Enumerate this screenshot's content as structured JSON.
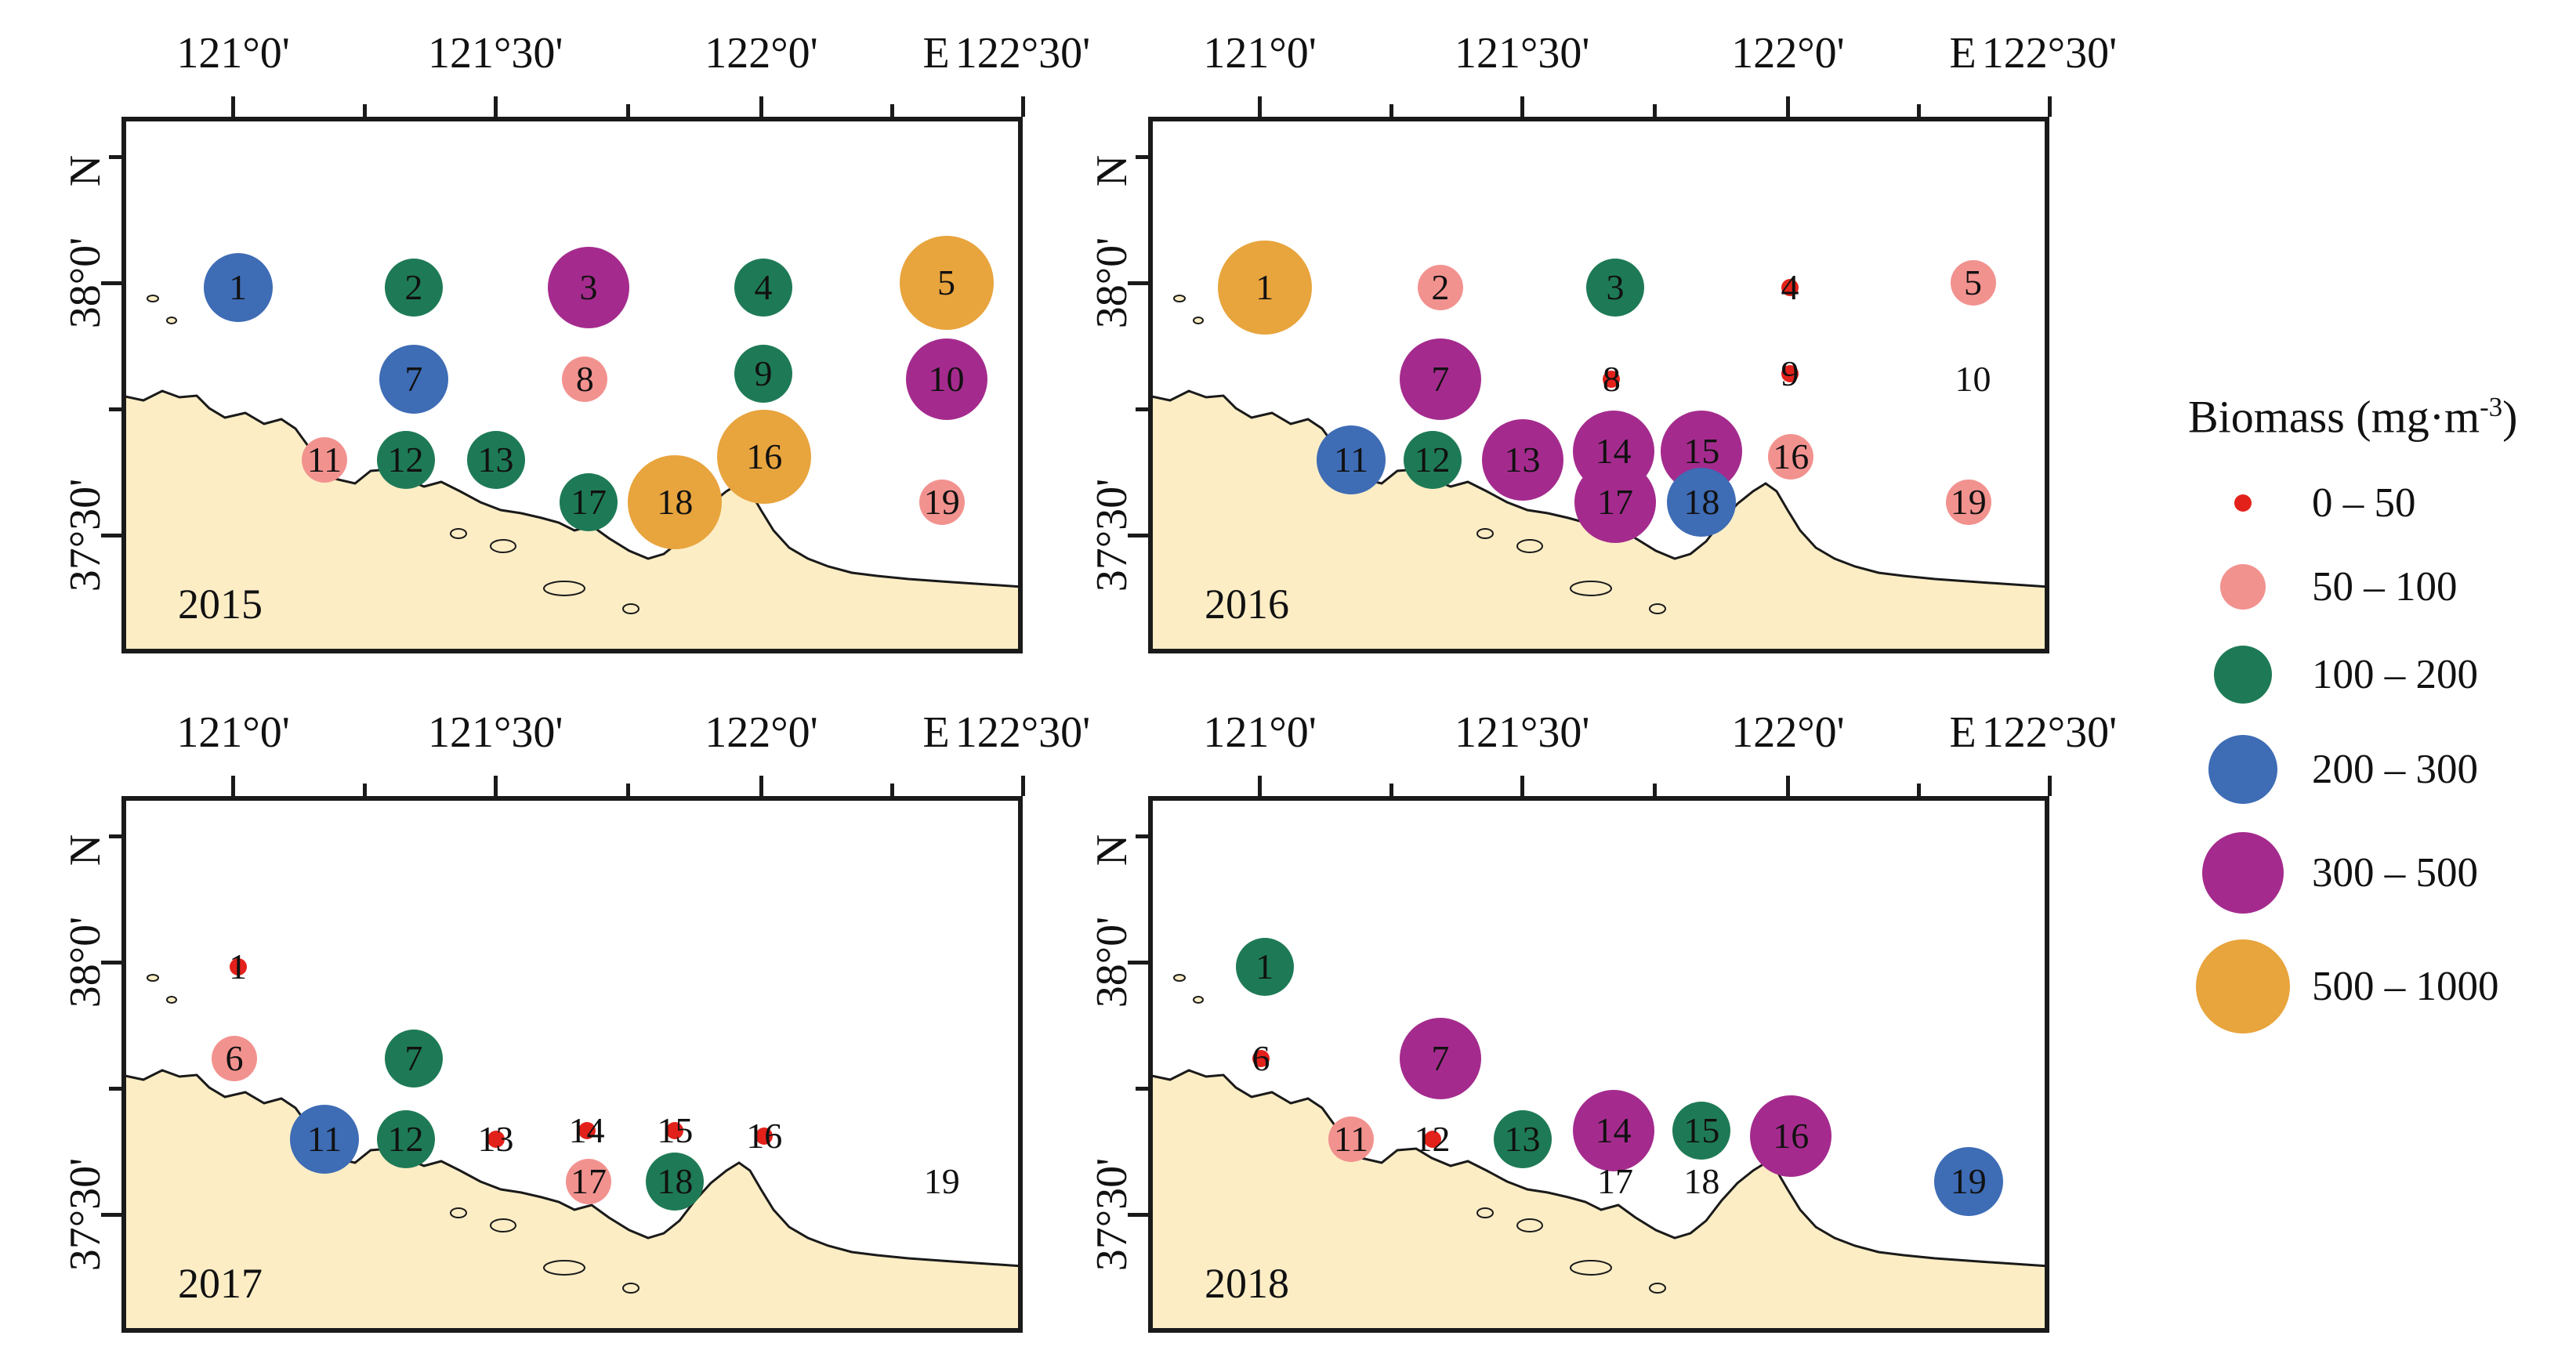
{
  "figure": {
    "legend": {
      "title_main": "Biomass (mg·m",
      "title_sup": "-3",
      "title_close": ")"
    },
    "colors": {
      "land": "#fcedc5",
      "sea": "#ffffff",
      "axis": "#1a1a1a"
    },
    "categories": [
      {
        "range": "0 – 50",
        "color": "#e3211b",
        "radius": 11
      },
      {
        "range": "50 – 100",
        "color": "#f2928f",
        "radius": 29
      },
      {
        "range": "100 – 200",
        "color": "#1e7a56",
        "radius": 37
      },
      {
        "range": "200 – 300",
        "color": "#3e6cb5",
        "radius": 44
      },
      {
        "range": "300 – 500",
        "color": "#a42b8d",
        "radius": 52
      },
      {
        "range": "500 – 1000",
        "color": "#e8a43d",
        "radius": 60
      }
    ],
    "station_positions": {
      "1": [
        0.124,
        0.31
      ],
      "2": [
        0.319,
        0.31
      ],
      "3": [
        0.513,
        0.31
      ],
      "4": [
        0.707,
        0.31
      ],
      "5": [
        0.91,
        0.3
      ],
      "6": [
        0.12,
        0.48
      ],
      "7": [
        0.319,
        0.48
      ],
      "8": [
        0.509,
        0.48
      ],
      "9": [
        0.707,
        0.47
      ],
      "10": [
        0.91,
        0.48
      ],
      "11": [
        0.22,
        0.63
      ],
      "12": [
        0.31,
        0.63
      ],
      "13": [
        0.41,
        0.63
      ],
      "14": [
        0.511,
        0.615
      ],
      "15": [
        0.609,
        0.615
      ],
      "16": [
        0.708,
        0.625
      ],
      "17": [
        0.513,
        0.71
      ],
      "18": [
        0.609,
        0.71
      ],
      "19": [
        0.905,
        0.71
      ]
    }
  },
  "chart_data": [
    {
      "type": "bubble-map",
      "year": "2015",
      "x_axis_prefix": "E",
      "y_axis_prefix": "N",
      "x_tick_labels": [
        "121°0'",
        "121°30'",
        "122°0'",
        "122°30'"
      ],
      "y_tick_labels": [
        "38°0'",
        "37°30'"
      ],
      "stations": [
        {
          "id": "1",
          "biomass": "200 – 300"
        },
        {
          "id": "2",
          "biomass": "100 – 200"
        },
        {
          "id": "3",
          "biomass": "300 – 500"
        },
        {
          "id": "4",
          "biomass": "100 – 200"
        },
        {
          "id": "5",
          "biomass": "500 – 1000"
        },
        {
          "id": "7",
          "biomass": "200 – 300"
        },
        {
          "id": "8",
          "biomass": "50 – 100"
        },
        {
          "id": "9",
          "biomass": "100 – 200"
        },
        {
          "id": "10",
          "biomass": "300 – 500"
        },
        {
          "id": "11",
          "biomass": "50 – 100"
        },
        {
          "id": "12",
          "biomass": "100 – 200"
        },
        {
          "id": "13",
          "biomass": "100 – 200"
        },
        {
          "id": "16",
          "biomass": "500 – 1000"
        },
        {
          "id": "17",
          "biomass": "100 – 200"
        },
        {
          "id": "18",
          "biomass": "500 – 1000"
        },
        {
          "id": "19",
          "biomass": "50 – 100"
        }
      ]
    },
    {
      "type": "bubble-map",
      "year": "2016",
      "x_axis_prefix": "E",
      "y_axis_prefix": "N",
      "x_tick_labels": [
        "121°0'",
        "121°30'",
        "122°0'",
        "122°30'"
      ],
      "y_tick_labels": [
        "38°0'",
        "37°30'"
      ],
      "stations": [
        {
          "id": "1",
          "biomass": "500 – 1000"
        },
        {
          "id": "2",
          "biomass": "50 – 100"
        },
        {
          "id": "3",
          "biomass": "100 – 200"
        },
        {
          "id": "4",
          "biomass": "0 – 50"
        },
        {
          "id": "5",
          "biomass": "50 – 100"
        },
        {
          "id": "7",
          "biomass": "300 – 500"
        },
        {
          "id": "8",
          "biomass": "0 – 50"
        },
        {
          "id": "9",
          "biomass": "0 – 50"
        },
        {
          "id": "10",
          "biomass": "none"
        },
        {
          "id": "11",
          "biomass": "200 – 300"
        },
        {
          "id": "12",
          "biomass": "100 – 200"
        },
        {
          "id": "13",
          "biomass": "300 – 500"
        },
        {
          "id": "14",
          "biomass": "300 – 500"
        },
        {
          "id": "15",
          "biomass": "300 – 500"
        },
        {
          "id": "16",
          "biomass": "50 – 100"
        },
        {
          "id": "17",
          "biomass": "300 – 500"
        },
        {
          "id": "18",
          "biomass": "200 – 300"
        },
        {
          "id": "19",
          "biomass": "50 – 100"
        }
      ]
    },
    {
      "type": "bubble-map",
      "year": "2017",
      "x_axis_prefix": "E",
      "y_axis_prefix": "N",
      "x_tick_labels": [
        "121°0'",
        "121°30'",
        "122°0'",
        "122°30'"
      ],
      "y_tick_labels": [
        "38°0'",
        "37°30'"
      ],
      "stations": [
        {
          "id": "1",
          "biomass": "0 – 50"
        },
        {
          "id": "6",
          "biomass": "50 – 100"
        },
        {
          "id": "7",
          "biomass": "100 – 200"
        },
        {
          "id": "11",
          "biomass": "200 – 300"
        },
        {
          "id": "12",
          "biomass": "100 – 200"
        },
        {
          "id": "13",
          "biomass": "0 – 50"
        },
        {
          "id": "14",
          "biomass": "0 – 50"
        },
        {
          "id": "15",
          "biomass": "0 – 50"
        },
        {
          "id": "16",
          "biomass": "0 – 50"
        },
        {
          "id": "17",
          "biomass": "50 – 100"
        },
        {
          "id": "18",
          "biomass": "100 – 200"
        },
        {
          "id": "19",
          "biomass": "none"
        }
      ]
    },
    {
      "type": "bubble-map",
      "year": "2018",
      "x_axis_prefix": "E",
      "y_axis_prefix": "N",
      "x_tick_labels": [
        "121°0'",
        "121°30'",
        "122°0'",
        "122°30'"
      ],
      "y_tick_labels": [
        "38°0'",
        "37°30'"
      ],
      "stations": [
        {
          "id": "1",
          "biomass": "100 – 200"
        },
        {
          "id": "6",
          "biomass": "0 – 50"
        },
        {
          "id": "7",
          "biomass": "300 – 500"
        },
        {
          "id": "11",
          "biomass": "50 – 100"
        },
        {
          "id": "12",
          "biomass": "0 – 50"
        },
        {
          "id": "13",
          "biomass": "100 – 200"
        },
        {
          "id": "14",
          "biomass": "300 – 500"
        },
        {
          "id": "15",
          "biomass": "100 – 200"
        },
        {
          "id": "16",
          "biomass": "300 – 500"
        },
        {
          "id": "17",
          "biomass": "none"
        },
        {
          "id": "18",
          "biomass": "none"
        },
        {
          "id": "19",
          "biomass": "200 – 300"
        }
      ]
    }
  ]
}
